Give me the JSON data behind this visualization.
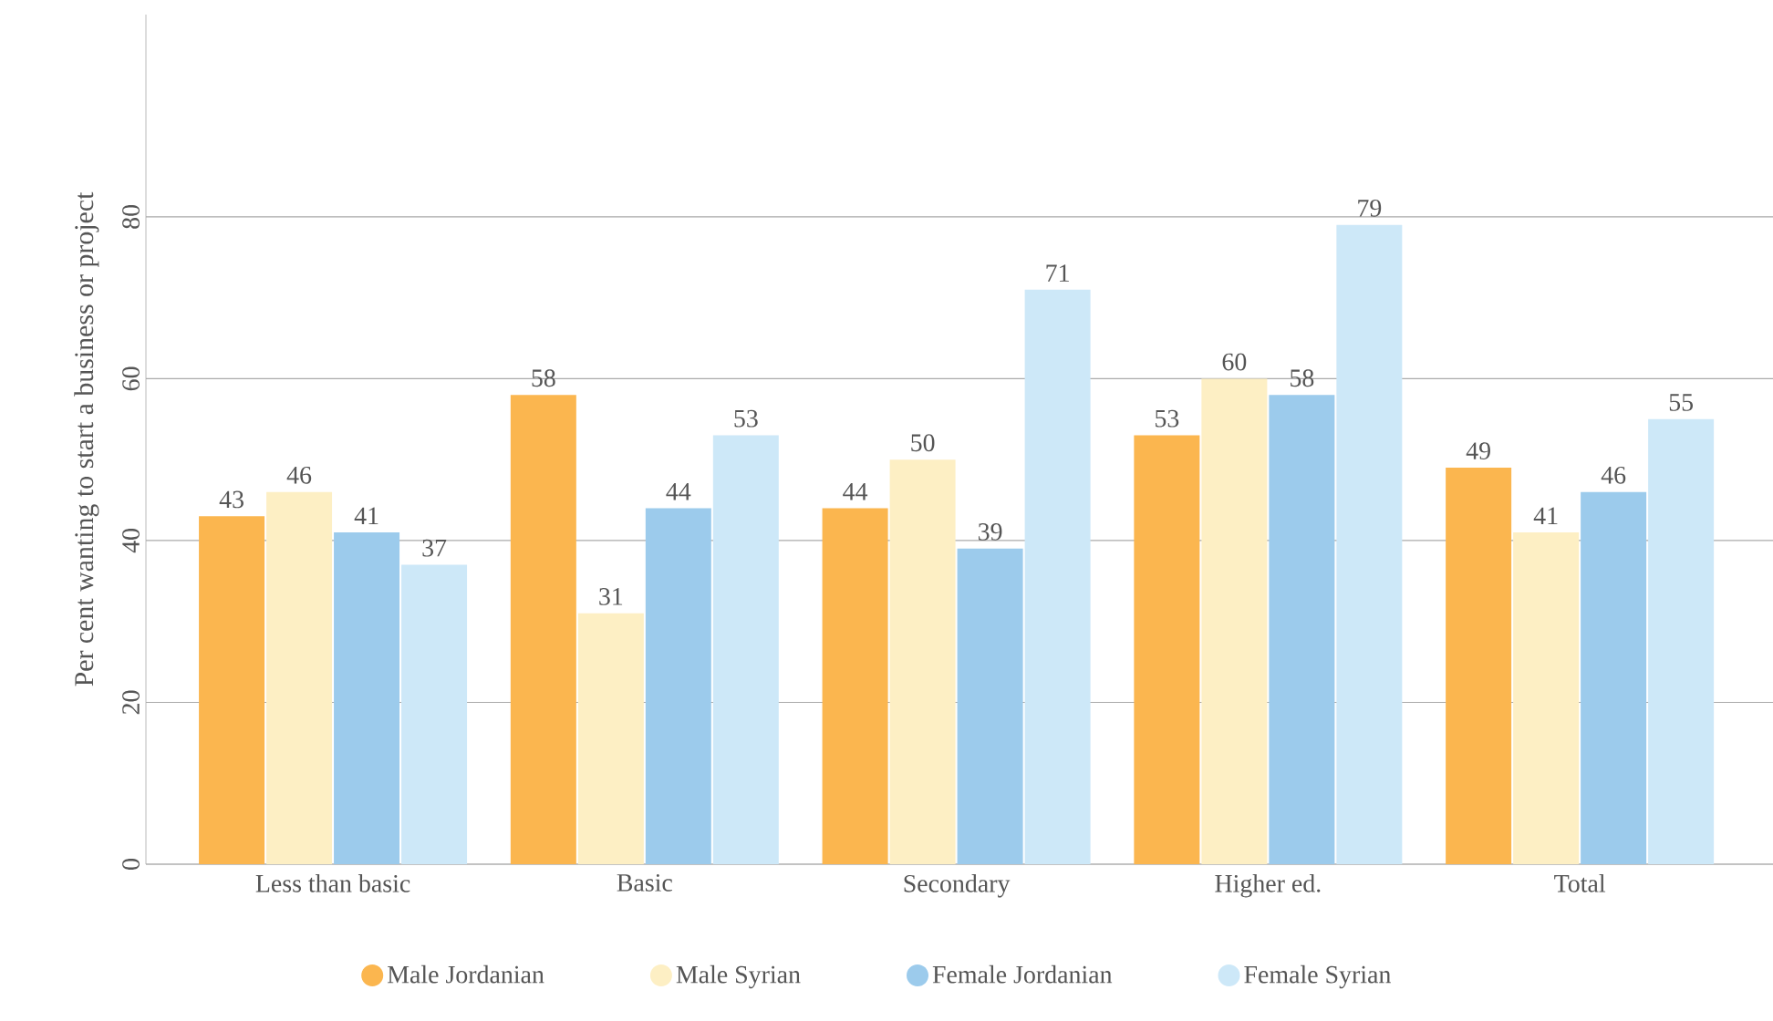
{
  "chart_data": {
    "type": "bar",
    "ylabel": "Per cent wanting to start a business or project",
    "categories": [
      "Less than basic",
      "Basic",
      "Secondary",
      "Higher ed.",
      "Total"
    ],
    "series": [
      {
        "name": "Male Jordanian",
        "color": "#fbb64f",
        "values": [
          43,
          58,
          44,
          53,
          49
        ]
      },
      {
        "name": "Male Syrian",
        "color": "#fdefc4",
        "values": [
          46,
          31,
          50,
          60,
          41
        ]
      },
      {
        "name": "Female Jordanian",
        "color": "#9ccbec",
        "values": [
          41,
          44,
          39,
          58,
          46
        ]
      },
      {
        "name": "Female Syrian",
        "color": "#cde8f8",
        "values": [
          37,
          53,
          71,
          79,
          55
        ]
      }
    ],
    "ylim": [
      0,
      105
    ],
    "yticks": [
      0,
      20,
      40,
      60,
      80
    ],
    "grid": "y",
    "legend": "bottom",
    "data_labels": true
  }
}
